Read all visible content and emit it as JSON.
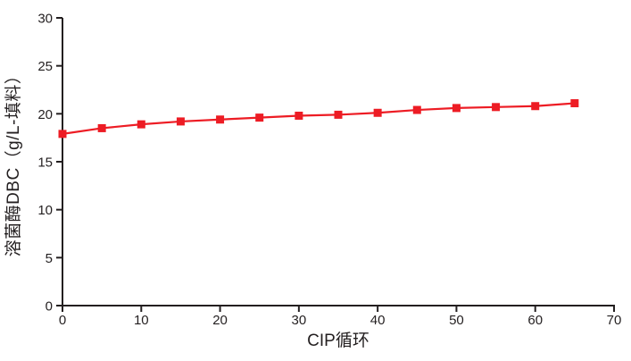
{
  "figure": {
    "background": "#ffffff"
  },
  "chart_data": {
    "type": "line",
    "title": "",
    "xlabel": "CIP循环",
    "ylabel": "溶菌酶DBC（g/L-填料）",
    "xlim": [
      0,
      70
    ],
    "ylim": [
      0,
      30
    ],
    "x_ticks": [
      0,
      10,
      20,
      30,
      40,
      50,
      60,
      70
    ],
    "y_ticks": [
      0,
      5,
      10,
      15,
      20,
      25,
      30
    ],
    "grid": false,
    "legend": "none",
    "axis_color": "#231f20",
    "series": [
      {
        "name": "溶菌酶DBC",
        "marker": "square",
        "color": "#ed1c24",
        "x": [
          0,
          5,
          10,
          15,
          20,
          25,
          30,
          35,
          40,
          45,
          50,
          55,
          60,
          65
        ],
        "values": [
          17.9,
          18.5,
          18.9,
          19.2,
          19.4,
          19.6,
          19.8,
          19.9,
          20.1,
          20.4,
          20.6,
          20.7,
          20.8,
          21.1
        ]
      }
    ]
  }
}
